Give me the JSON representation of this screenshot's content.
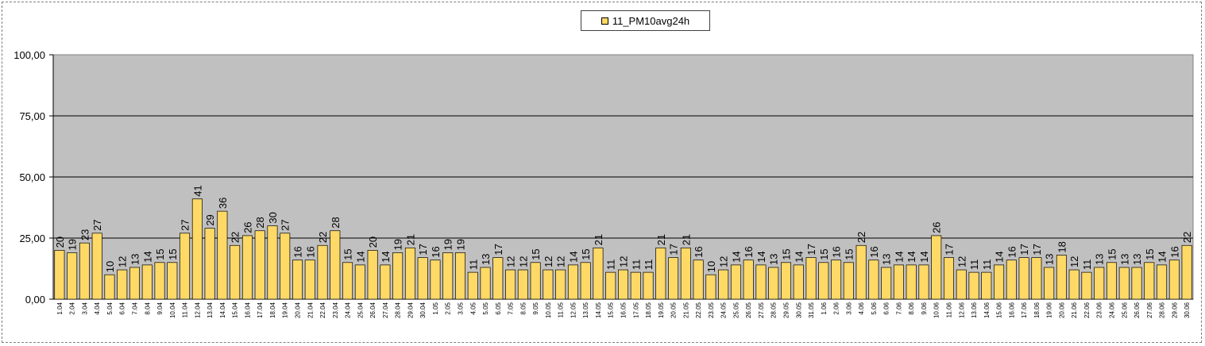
{
  "chart_data": {
    "type": "bar",
    "series": [
      {
        "name": "11_PM10avg24h",
        "color": "#ffd966",
        "values": [
          20,
          19,
          23,
          27,
          10,
          12,
          13,
          14,
          15,
          15,
          27,
          41,
          29,
          36,
          22,
          26,
          28,
          30,
          27,
          16,
          16,
          22,
          28,
          15,
          14,
          20,
          14,
          19,
          21,
          17,
          16,
          19,
          19,
          11,
          13,
          17,
          12,
          12,
          15,
          12,
          12,
          14,
          15,
          21,
          11,
          12,
          11,
          11,
          21,
          17,
          21,
          16,
          10,
          12,
          14,
          16,
          14,
          13,
          15,
          14,
          17,
          15,
          16,
          15,
          22,
          16,
          13,
          14,
          14,
          14,
          26,
          17,
          12,
          11,
          11,
          14,
          16,
          17,
          17,
          13,
          18,
          12,
          11,
          13,
          15,
          13,
          13,
          15,
          14,
          16,
          22
        ]
      }
    ],
    "categories": [
      "1.04",
      "2.04",
      "3.04",
      "4.04",
      "5.04",
      "6.04",
      "7.04",
      "8.04",
      "9.04",
      "10.04",
      "11.04",
      "12.04",
      "13.04",
      "14.04",
      "15.04",
      "16.04",
      "17.04",
      "18.04",
      "19.04",
      "20.04",
      "21.04",
      "22.04",
      "23.04",
      "24.04",
      "25.04",
      "26.04",
      "27.04",
      "28.04",
      "29.04",
      "30.04",
      "1.05",
      "2.05",
      "3.05",
      "4.05",
      "5.05",
      "6.05",
      "7.05",
      "8.05",
      "9.05",
      "10.05",
      "11.05",
      "12.05",
      "13.05",
      "14.05",
      "15.05",
      "16.05",
      "17.05",
      "18.05",
      "19.05",
      "20.05",
      "21.05",
      "22.05",
      "23.05",
      "24.05",
      "25.05",
      "26.05",
      "27.05",
      "28.05",
      "29.05",
      "30.05",
      "31.05",
      "1.06",
      "2.06",
      "3.06",
      "4.06",
      "5.06",
      "6.06",
      "7.06",
      "8.06",
      "9.06",
      "10.06",
      "11.06",
      "12.06",
      "13.06",
      "14.06",
      "15.06",
      "16.06",
      "17.06",
      "18.06",
      "19.06",
      "20.06",
      "21.06",
      "22.06",
      "23.06",
      "24.06",
      "25.06",
      "26.06",
      "27.06",
      "28.06",
      "29.06",
      "30.06"
    ],
    "yticks": [
      "0,00",
      "25,00",
      "50,00",
      "75,00",
      "100,00"
    ],
    "ylim": [
      0,
      100
    ],
    "plot_background": "#c0c0c0",
    "grid": true,
    "legend_position": "top-center"
  }
}
